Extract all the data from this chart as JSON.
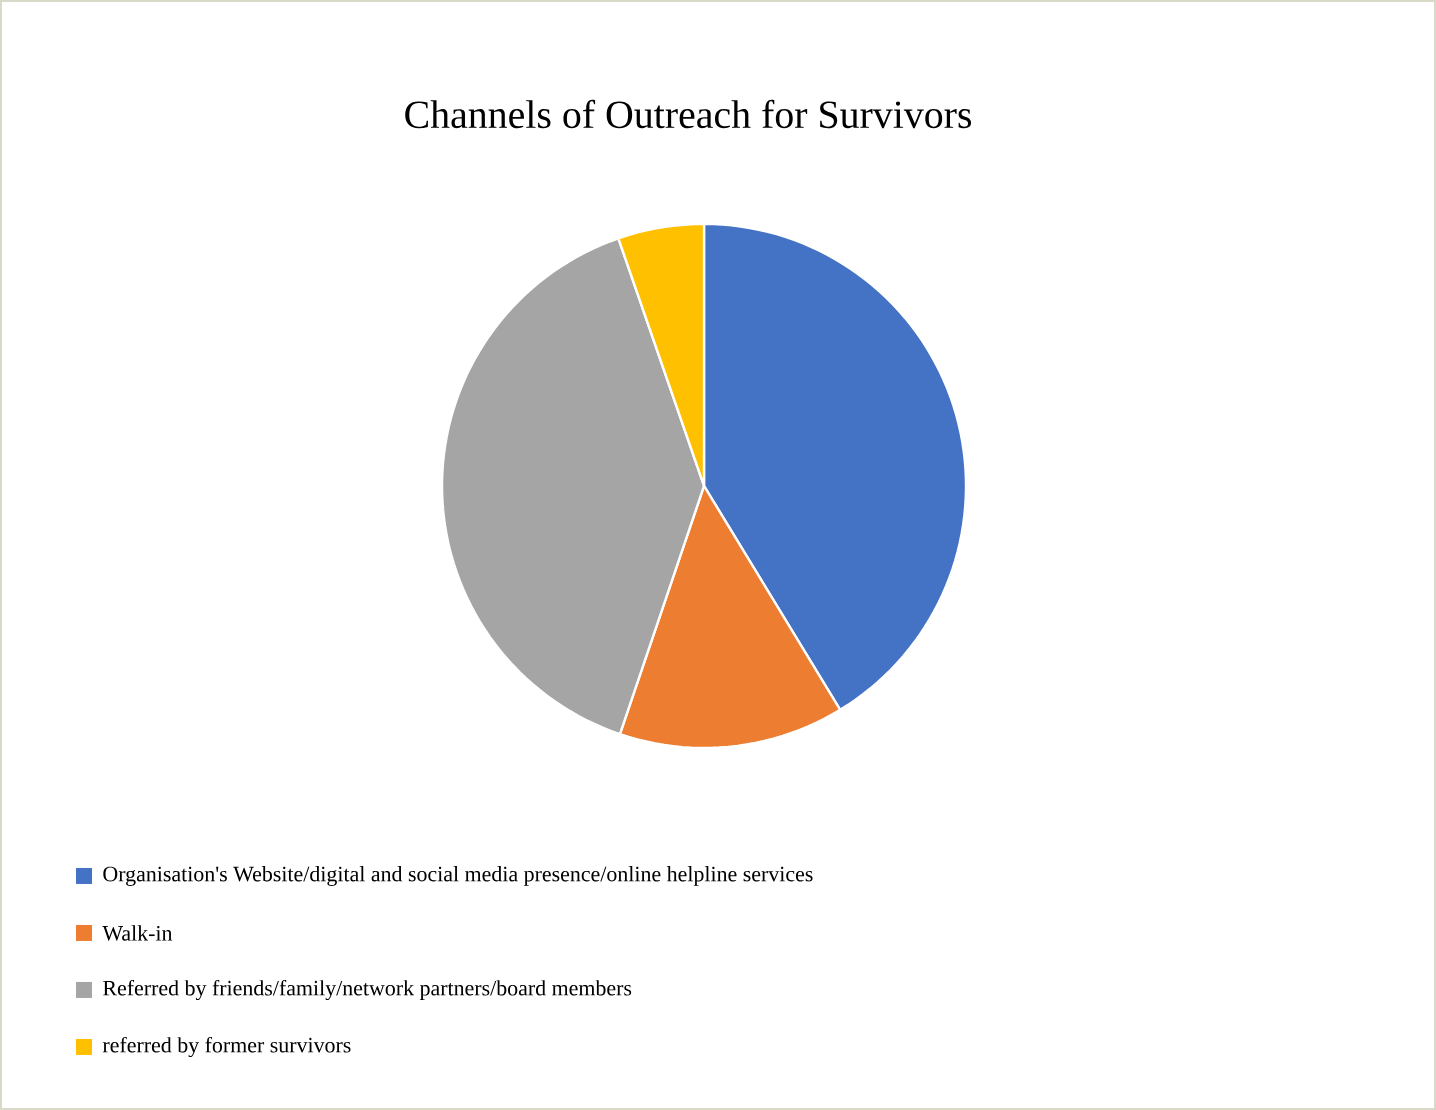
{
  "chart_data": {
    "type": "pie",
    "title": "Channels of Outreach for Survivors",
    "categories": [
      "Organisation's Website/digital and social media presence/online helpline services",
      "Walk-in",
      "Referred by friends/family/network partners/board members",
      "referred by former survivors"
    ],
    "values": [
      41.3,
      13.9,
      39.5,
      5.3
    ],
    "colors": [
      "#4472c4",
      "#ed7d31",
      "#a5a5a5",
      "#ffc000"
    ],
    "legend": "bottom"
  }
}
